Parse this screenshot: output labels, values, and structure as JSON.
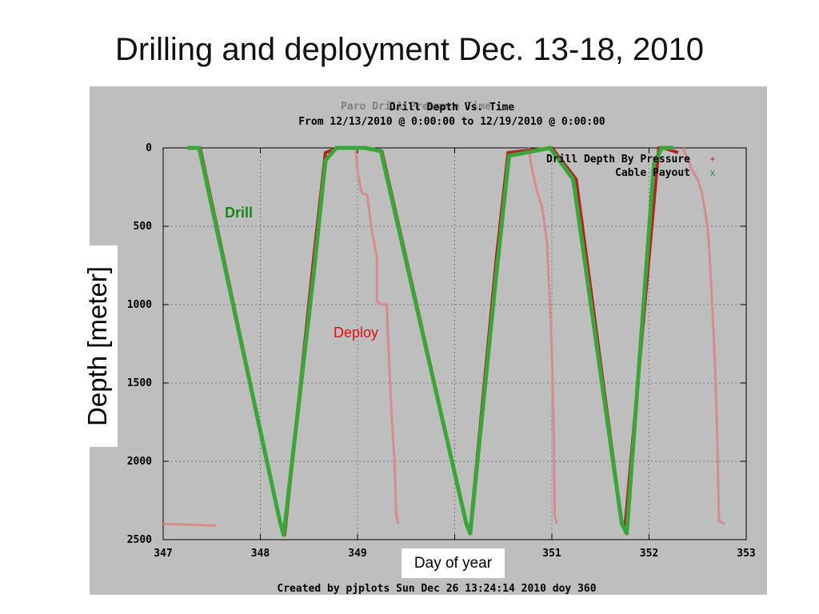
{
  "slide_title": "Drilling and deployment Dec. 13-18, 2010",
  "plot": {
    "ghost_title": "Paro Drill Pressure Time",
    "title": "Drill Depth Vs. Time",
    "subtitle": "From 12/13/2010 @ 0:00:00 to 12/19/2010 @ 0:00:00",
    "footer": "Created by pjplots Sun Dec 26 13:24:14 2010 doy 360",
    "legend": [
      {
        "label": "Drill Depth By Pressure",
        "marker": "+",
        "color": "#b22222"
      },
      {
        "label": "Cable Payout",
        "marker": "x",
        "color": "#2e8b2e"
      }
    ],
    "annotations": {
      "drill": "Drill",
      "deploy": "Deploy"
    },
    "axis_overlays": {
      "ylabel": "Depth [meter]",
      "xlabel": "Day of year"
    }
  },
  "colors": {
    "panel_bg": "#bebebe",
    "pressure": "#b22222",
    "cable": "#3aa63a",
    "deploy": "#d48c8c",
    "drill_annotation": "#138a13",
    "deploy_annotation": "#dd1111"
  },
  "chart_data": {
    "type": "line",
    "title": "Drill Depth Vs. Time",
    "xlabel": "Day of year",
    "ylabel": "Depth [meter]",
    "xlim": [
      347,
      353
    ],
    "ylim": [
      0,
      2500
    ],
    "y_inverted": true,
    "grid": true,
    "legend_position": "top-right",
    "x_ticks": [
      347,
      348,
      349,
      350,
      351,
      352,
      353
    ],
    "x_tick_labels": [
      "347",
      "348",
      "349",
      "",
      "351",
      "352",
      "353"
    ],
    "y_ticks": [
      0,
      500,
      1000,
      1500,
      2000,
      2500
    ],
    "series": [
      {
        "name": "Drill Depth By Pressure",
        "x": [
          347.25,
          347.38,
          348.2,
          348.25,
          348.55,
          348.67,
          348.8,
          349.08,
          349.25,
          350.12,
          350.16,
          350.43,
          350.55,
          351.0,
          351.25,
          351.72,
          351.75,
          352.1,
          352.15,
          352.3
        ],
        "y": [
          0,
          0,
          2380,
          2470,
          700,
          30,
          0,
          0,
          20,
          2400,
          2440,
          700,
          30,
          0,
          200,
          2400,
          2440,
          0,
          0,
          30
        ]
      },
      {
        "name": "Cable Payout",
        "x": [
          347.25,
          347.37,
          348.2,
          348.24,
          348.55,
          348.67,
          348.78,
          349.08,
          349.24,
          350.12,
          350.16,
          350.43,
          350.56,
          350.98,
          351.22,
          351.72,
          351.77,
          352.05,
          352.13,
          352.25
        ],
        "y": [
          0,
          0,
          2380,
          2470,
          800,
          80,
          0,
          0,
          20,
          2400,
          2460,
          800,
          50,
          0,
          200,
          2400,
          2460,
          100,
          0,
          0
        ]
      }
    ],
    "unlabeled_series": [
      {
        "annotation": "Deploy",
        "segments": [
          {
            "x": [
              347.0,
              347.55
            ],
            "y": [
              2400,
              2410
            ]
          },
          {
            "x": [
              348.98,
              349.0,
              349.04,
              349.05,
              349.1,
              349.14,
              349.2,
              349.2,
              349.25,
              349.3,
              349.32,
              349.35,
              349.38,
              349.4,
              349.42
            ],
            "y": [
              0,
              150,
              280,
              290,
              300,
              500,
              700,
              980,
              1000,
              1000,
              1300,
              1700,
              2000,
              2350,
              2400
            ]
          },
          {
            "x": [
              350.76,
              350.8,
              350.85,
              350.9,
              350.95,
              350.98,
              351.0,
              351.02,
              351.03,
              351.05
            ],
            "y": [
              0,
              150,
              280,
              380,
              600,
              1000,
              1300,
              1800,
              2350,
              2400
            ]
          },
          {
            "x": [
              352.35,
              352.45,
              352.5,
              352.55,
              352.6,
              352.62,
              352.65,
              352.68,
              352.7,
              352.72,
              352.78
            ],
            "y": [
              0,
              150,
              200,
              300,
              500,
              650,
              1000,
              1400,
              1800,
              2380,
              2400
            ]
          }
        ]
      }
    ]
  }
}
